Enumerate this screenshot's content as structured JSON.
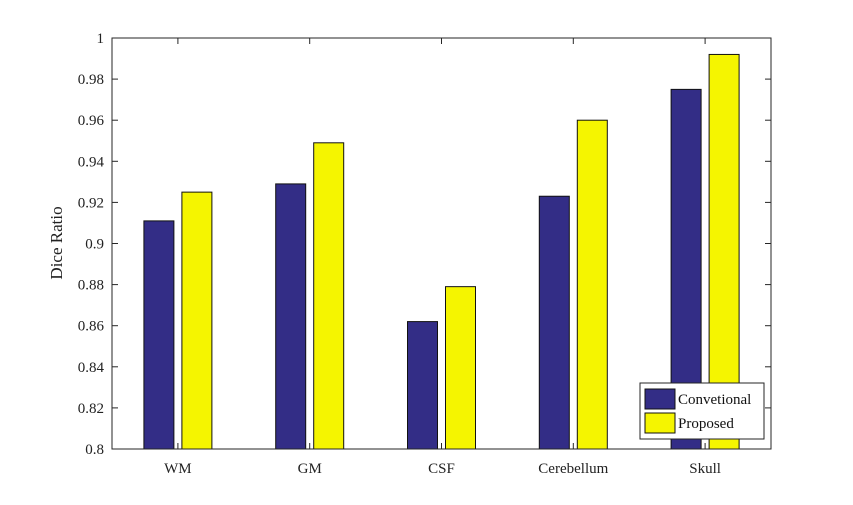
{
  "chart_data": {
    "type": "bar",
    "title": "",
    "xlabel": "",
    "ylabel": "Dice Ratio",
    "categories": [
      "WM",
      "GM",
      "CSF",
      "Cerebellum",
      "Skull"
    ],
    "series": [
      {
        "name": "Convetional",
        "color": "#332d86",
        "values": [
          0.911,
          0.929,
          0.862,
          0.923,
          0.975
        ]
      },
      {
        "name": "Proposed",
        "color": "#f5f500",
        "values": [
          0.925,
          0.949,
          0.879,
          0.96,
          0.992
        ]
      }
    ],
    "ylim": [
      0.8,
      1.0
    ],
    "yticks": [
      "0.8",
      "0.82",
      "0.84",
      "0.86",
      "0.88",
      "0.9",
      "0.92",
      "0.94",
      "0.96",
      "0.98",
      "1"
    ],
    "grid": false,
    "legend_position": "bottom-right"
  }
}
